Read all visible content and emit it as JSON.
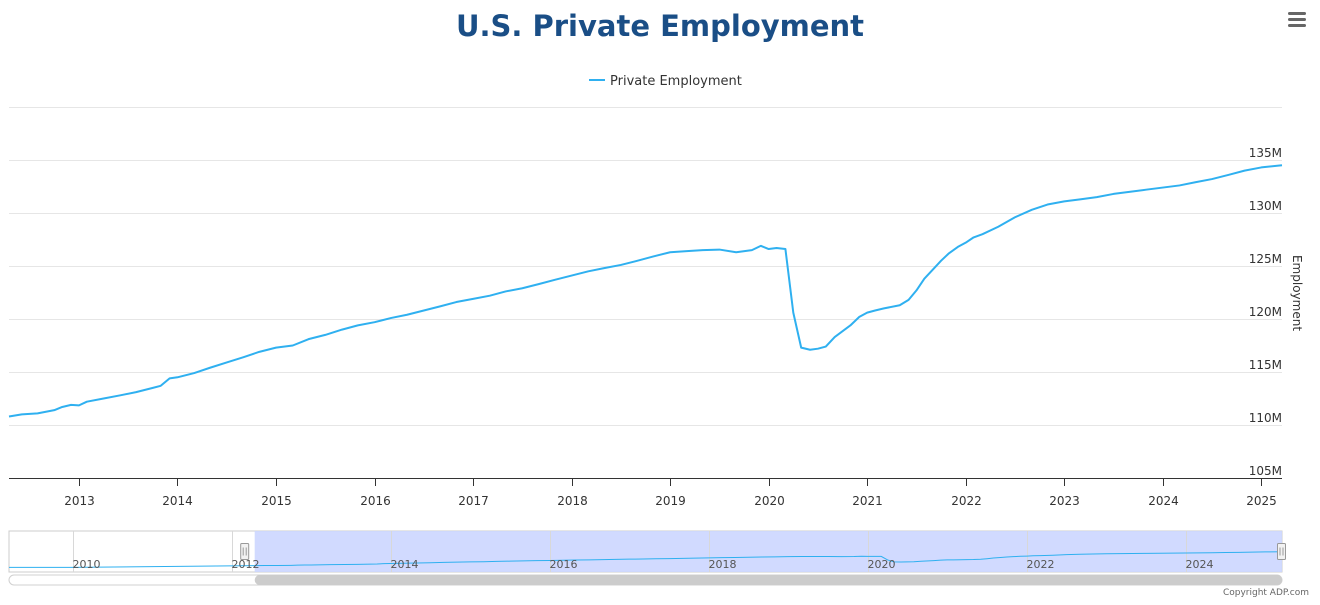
{
  "chart_data": {
    "type": "line",
    "title": "U.S. Private Employment",
    "legend": [
      "Private Employment"
    ],
    "ylabel": "Employment",
    "ylim": [
      105,
      140
    ],
    "yticks": [
      105,
      110,
      115,
      120,
      125,
      130,
      135
    ],
    "ytick_labels": [
      "105M",
      "110M",
      "115M",
      "120M",
      "125M",
      "130M",
      "135M"
    ],
    "xlim": [
      2012.29,
      2025.21
    ],
    "xticks": [
      2013,
      2014,
      2015,
      2016,
      2017,
      2018,
      2019,
      2020,
      2021,
      2022,
      2023,
      2024,
      2025
    ],
    "xtick_labels": [
      "2013",
      "2014",
      "2015",
      "2016",
      "2017",
      "2018",
      "2019",
      "2020",
      "2021",
      "2022",
      "2023",
      "2024",
      "2025"
    ],
    "series": [
      {
        "name": "Private Employment",
        "color": "#2fb0f0",
        "points": [
          [
            2012.29,
            110.8
          ],
          [
            2012.42,
            111.0
          ],
          [
            2012.58,
            111.1
          ],
          [
            2012.75,
            111.4
          ],
          [
            2012.83,
            111.7
          ],
          [
            2012.92,
            111.9
          ],
          [
            2013.0,
            111.85
          ],
          [
            2013.08,
            112.2
          ],
          [
            2013.25,
            112.5
          ],
          [
            2013.42,
            112.8
          ],
          [
            2013.58,
            113.1
          ],
          [
            2013.75,
            113.5
          ],
          [
            2013.83,
            113.7
          ],
          [
            2013.92,
            114.4
          ],
          [
            2014.0,
            114.5
          ],
          [
            2014.17,
            114.9
          ],
          [
            2014.33,
            115.4
          ],
          [
            2014.5,
            115.9
          ],
          [
            2014.67,
            116.4
          ],
          [
            2014.83,
            116.9
          ],
          [
            2015.0,
            117.3
          ],
          [
            2015.17,
            117.5
          ],
          [
            2015.33,
            118.1
          ],
          [
            2015.5,
            118.5
          ],
          [
            2015.67,
            119.0
          ],
          [
            2015.83,
            119.4
          ],
          [
            2016.0,
            119.7
          ],
          [
            2016.17,
            120.1
          ],
          [
            2016.33,
            120.4
          ],
          [
            2016.5,
            120.8
          ],
          [
            2016.67,
            121.2
          ],
          [
            2016.83,
            121.6
          ],
          [
            2017.0,
            121.9
          ],
          [
            2017.17,
            122.2
          ],
          [
            2017.33,
            122.6
          ],
          [
            2017.5,
            122.9
          ],
          [
            2017.67,
            123.3
          ],
          [
            2017.83,
            123.7
          ],
          [
            2018.0,
            124.1
          ],
          [
            2018.17,
            124.5
          ],
          [
            2018.33,
            124.8
          ],
          [
            2018.5,
            125.1
          ],
          [
            2018.67,
            125.5
          ],
          [
            2018.83,
            125.9
          ],
          [
            2019.0,
            126.3
          ],
          [
            2019.17,
            126.4
          ],
          [
            2019.33,
            126.5
          ],
          [
            2019.5,
            126.55
          ],
          [
            2019.67,
            126.3
          ],
          [
            2019.83,
            126.5
          ],
          [
            2019.92,
            126.9
          ],
          [
            2020.0,
            126.6
          ],
          [
            2020.08,
            126.7
          ],
          [
            2020.17,
            126.6
          ],
          [
            2020.25,
            120.6
          ],
          [
            2020.33,
            117.3
          ],
          [
            2020.42,
            117.1
          ],
          [
            2020.5,
            117.2
          ],
          [
            2020.58,
            117.4
          ],
          [
            2020.67,
            118.3
          ],
          [
            2020.83,
            119.4
          ],
          [
            2020.92,
            120.2
          ],
          [
            2021.0,
            120.6
          ],
          [
            2021.08,
            120.8
          ],
          [
            2021.17,
            121.0
          ],
          [
            2021.33,
            121.3
          ],
          [
            2021.42,
            121.8
          ],
          [
            2021.5,
            122.7
          ],
          [
            2021.58,
            123.8
          ],
          [
            2021.67,
            124.7
          ],
          [
            2021.75,
            125.5
          ],
          [
            2021.83,
            126.2
          ],
          [
            2021.92,
            126.8
          ],
          [
            2022.0,
            127.2
          ],
          [
            2022.08,
            127.7
          ],
          [
            2022.17,
            128.0
          ],
          [
            2022.33,
            128.7
          ],
          [
            2022.5,
            129.6
          ],
          [
            2022.67,
            130.3
          ],
          [
            2022.83,
            130.8
          ],
          [
            2023.0,
            131.1
          ],
          [
            2023.17,
            131.3
          ],
          [
            2023.33,
            131.5
          ],
          [
            2023.5,
            131.8
          ],
          [
            2023.67,
            132.0
          ],
          [
            2023.83,
            132.2
          ],
          [
            2024.0,
            132.4
          ],
          [
            2024.17,
            132.6
          ],
          [
            2024.33,
            132.9
          ],
          [
            2024.5,
            133.2
          ],
          [
            2024.67,
            133.6
          ],
          [
            2024.83,
            134.0
          ],
          [
            2025.0,
            134.3
          ],
          [
            2025.21,
            134.5
          ]
        ]
      }
    ],
    "navigator": {
      "xlim": [
        2009.2,
        2025.21
      ],
      "labels": [
        "2010",
        "2012",
        "2014",
        "2016",
        "2018",
        "2020",
        "2022",
        "2024"
      ],
      "label_years": [
        2010,
        2012,
        2014,
        2016,
        2018,
        2020,
        2022,
        2024
      ],
      "selected_range": [
        2012.29,
        2025.21
      ],
      "early_points": [
        [
          2009.2,
          107.8
        ],
        [
          2010.0,
          107.9
        ],
        [
          2011.0,
          109.2
        ],
        [
          2012.29,
          110.8
        ]
      ]
    }
  },
  "menu": {
    "icon": "hamburger-menu-icon"
  },
  "credit": "Copyright ADP.com"
}
